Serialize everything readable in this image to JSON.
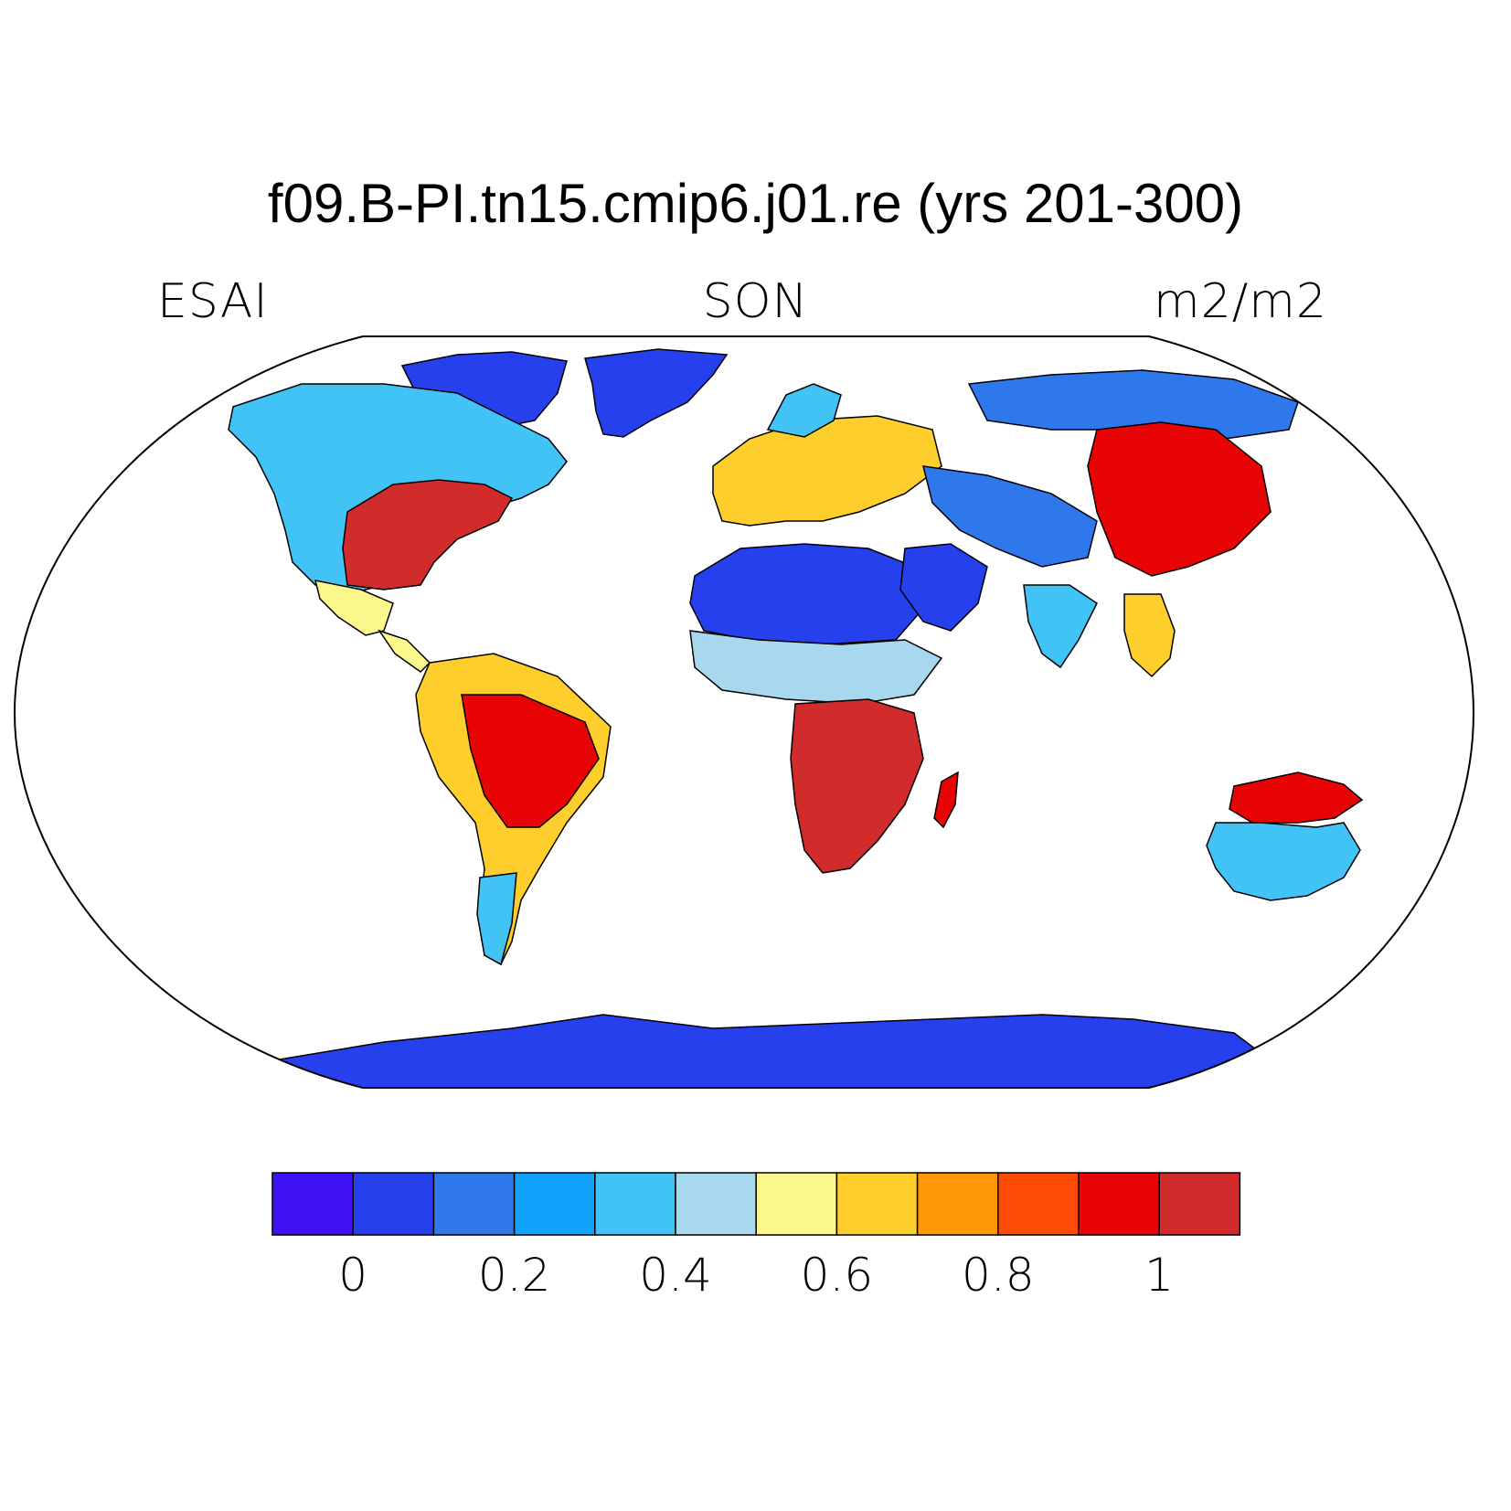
{
  "title": "f09.B-PI.tn15.cmip6.j01.re (yrs 201-300)",
  "left_label": "ESAI",
  "center_label": "SON",
  "right_label": "m2/m2",
  "map": {
    "projection": "robinson",
    "background": "#ffffff",
    "coastline_color": "#000000",
    "ocean_color": "#ffffff",
    "regions": [
      {
        "name": "greenland",
        "level": 1
      },
      {
        "name": "canadian-arctic",
        "level": 1
      },
      {
        "name": "north-america",
        "level": 4
      },
      {
        "name": "eastern-us",
        "level": 11
      },
      {
        "name": "mexico",
        "level": 6
      },
      {
        "name": "central-america",
        "level": 6
      },
      {
        "name": "south-america",
        "level": 7
      },
      {
        "name": "brazil",
        "level": 10
      },
      {
        "name": "patagonia",
        "level": 4
      },
      {
        "name": "europe",
        "level": 7
      },
      {
        "name": "scandinavia",
        "level": 4
      },
      {
        "name": "sahara",
        "level": 1
      },
      {
        "name": "sahel",
        "level": 5
      },
      {
        "name": "southern-africa",
        "level": 11
      },
      {
        "name": "madagascar",
        "level": 10
      },
      {
        "name": "arabia",
        "level": 1
      },
      {
        "name": "siberia",
        "level": 2
      },
      {
        "name": "central-asia",
        "level": 2
      },
      {
        "name": "east-asia",
        "level": 10
      },
      {
        "name": "india",
        "level": 4
      },
      {
        "name": "southeast-asia",
        "level": 7
      },
      {
        "name": "australia-north",
        "level": 10
      },
      {
        "name": "australia-interior",
        "level": 4
      },
      {
        "name": "antarctica",
        "level": 1
      }
    ]
  },
  "colorbar": {
    "colors": [
      "#3e12f2",
      "#2740ee",
      "#2f78ec",
      "#12a2fb",
      "#42c3f5",
      "#a8d8ee",
      "#fcf78c",
      "#fdce2c",
      "#fd9705",
      "#fd4a05",
      "#e80304",
      "#d12b2b"
    ],
    "tick_labels": [
      "0",
      "0.2",
      "0.4",
      "0.6",
      "0.8",
      "1"
    ],
    "tick_positions": [
      1,
      3,
      5,
      7,
      9,
      11
    ]
  }
}
